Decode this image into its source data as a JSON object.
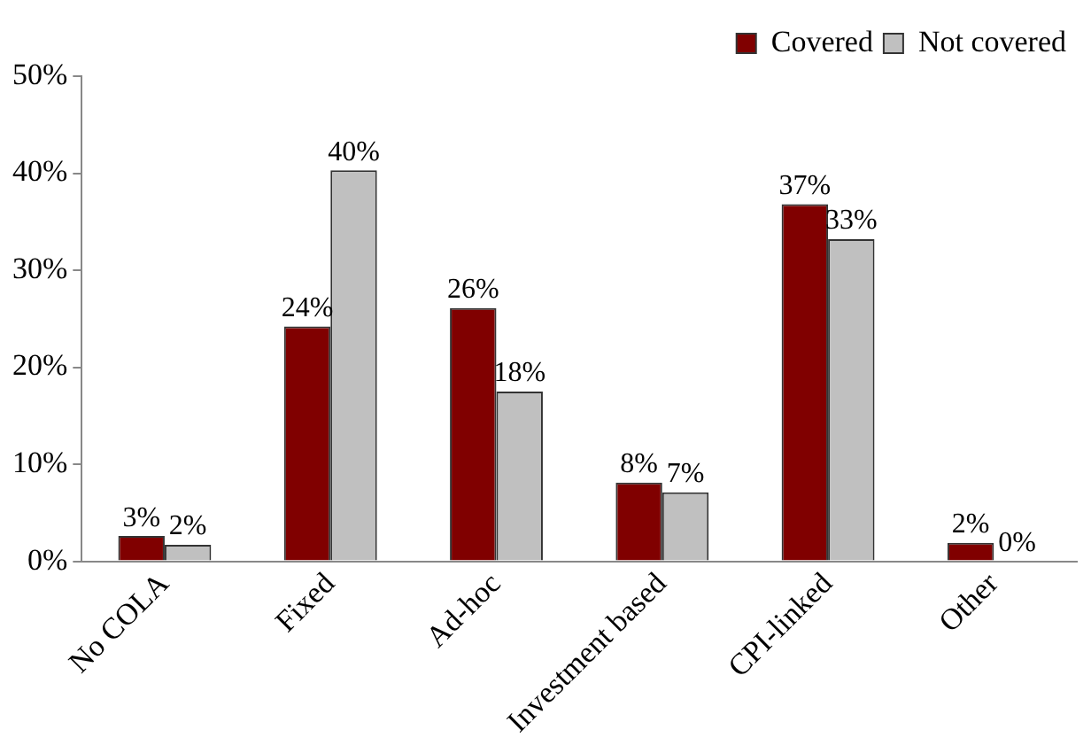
{
  "chart_data": {
    "type": "bar",
    "categories": [
      "No COLA",
      "Fixed",
      "Ad-hoc",
      "Investment based",
      "CPI-linked",
      "Other"
    ],
    "series": [
      {
        "name": "Covered",
        "color": "#800000",
        "values": [
          2.6,
          24.2,
          26.1,
          8.1,
          36.8,
          1.9
        ],
        "value_labels": [
          "3%",
          "24%",
          "26%",
          "8%",
          "37%",
          "2%"
        ]
      },
      {
        "name": "Not covered",
        "color": "#c0c0c0",
        "values": [
          1.7,
          40.3,
          17.5,
          7.1,
          33.2,
          0
        ],
        "value_labels": [
          "2%",
          "40%",
          "18%",
          "7%",
          "33%",
          "0%"
        ]
      }
    ],
    "ylim": [
      0,
      50
    ],
    "yticks": [
      {
        "value": 0,
        "label": "0%"
      },
      {
        "value": 10,
        "label": "10%"
      },
      {
        "value": 20,
        "label": "20%"
      },
      {
        "value": 30,
        "label": "30%"
      },
      {
        "value": 40,
        "label": "40%"
      },
      {
        "value": 50,
        "label": "50%"
      }
    ],
    "legend": "top right",
    "grid": false
  }
}
